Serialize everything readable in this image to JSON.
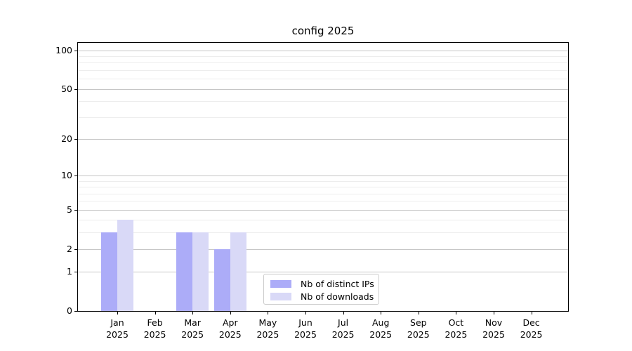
{
  "title": "config 2025",
  "chart_data": {
    "type": "bar",
    "title": "config 2025",
    "scale": "log1p",
    "grid": "both",
    "legend_position": "lower-center",
    "categories": [
      "Jan 2025",
      "Feb 2025",
      "Mar 2025",
      "Apr 2025",
      "May 2025",
      "Jun 2025",
      "Jul 2025",
      "Aug 2025",
      "Sep 2025",
      "Oct 2025",
      "Nov 2025",
      "Dec 2025"
    ],
    "series": [
      {
        "name": "Nb of distinct IPs",
        "color": "#acacf8",
        "values": [
          3,
          0,
          3,
          2,
          0,
          0,
          0,
          0,
          0,
          0,
          0,
          0
        ]
      },
      {
        "name": "Nb of downloads",
        "color": "#d9d9f7",
        "values": [
          4,
          0,
          3,
          3,
          0,
          0,
          0,
          0,
          0,
          0,
          0,
          0
        ]
      }
    ],
    "yticks": [
      0,
      1,
      2,
      5,
      10,
      20,
      50,
      100
    ],
    "minor_gridlines": [
      3,
      4,
      6,
      7,
      8,
      9,
      30,
      40,
      60,
      70,
      80,
      90
    ],
    "ylim": [
      0,
      114
    ],
    "xlabel": "",
    "ylabel": ""
  },
  "colors": {
    "bar_distinct_ips": "#acacf8",
    "bar_downloads": "#d9d9f7",
    "grid_major": "#c6c6c6",
    "grid_minor": "#ededed",
    "axis": "#000000",
    "legend_border": "#cccccc"
  }
}
